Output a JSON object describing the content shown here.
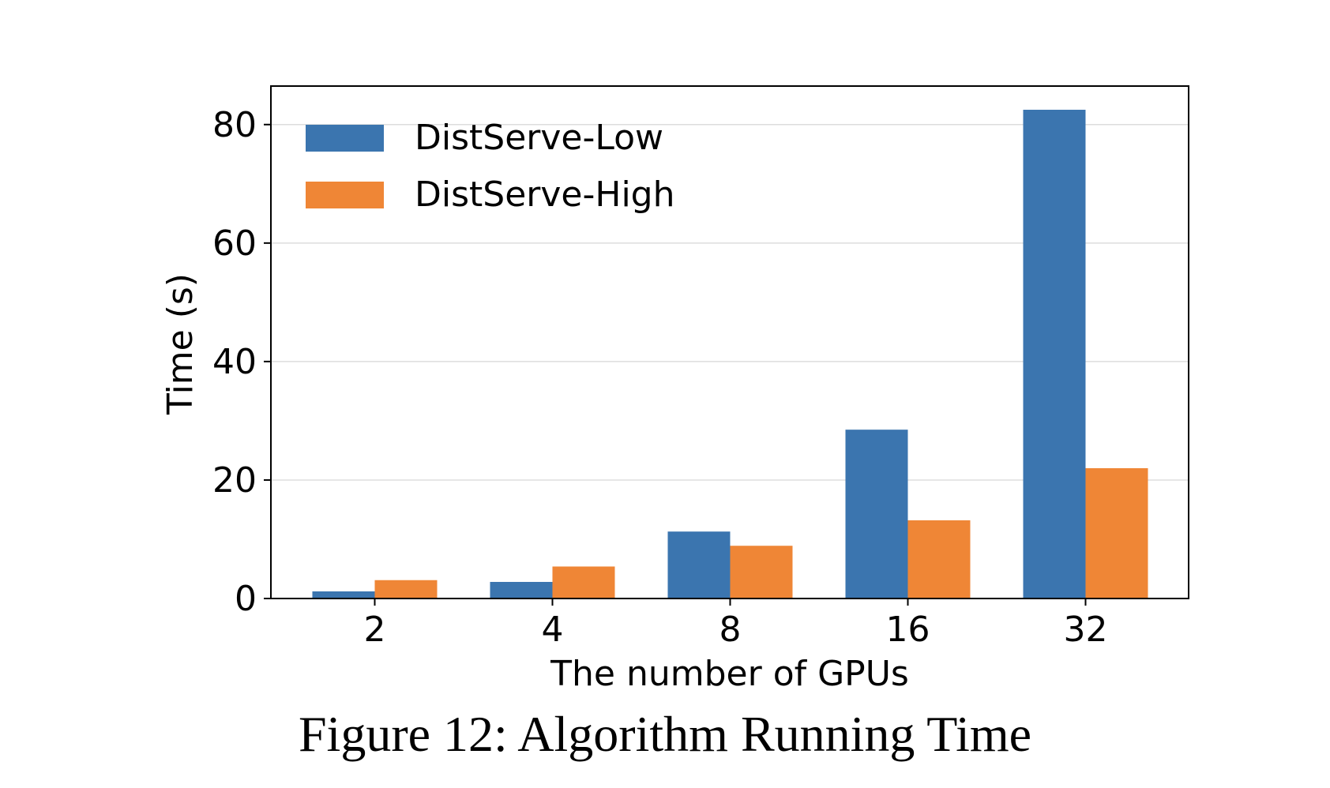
{
  "caption": "Figure 12: Algorithm Running Time",
  "chart_data": {
    "type": "bar",
    "categories": [
      "2",
      "4",
      "8",
      "16",
      "32"
    ],
    "series": [
      {
        "name": "DistServe-Low",
        "color": "#3b75af",
        "values": [
          1.2,
          2.8,
          11.3,
          28.5,
          82.5
        ]
      },
      {
        "name": "DistServe-High",
        "color": "#ef8636",
        "values": [
          3.1,
          5.4,
          8.9,
          13.2,
          22.0
        ]
      }
    ],
    "xlabel": "The number of GPUs",
    "ylabel": "Time (s)",
    "ylim": [
      0,
      86.5
    ],
    "yticks": [
      0,
      20,
      40,
      60,
      80
    ],
    "grid": "y",
    "legend": "top-left"
  }
}
